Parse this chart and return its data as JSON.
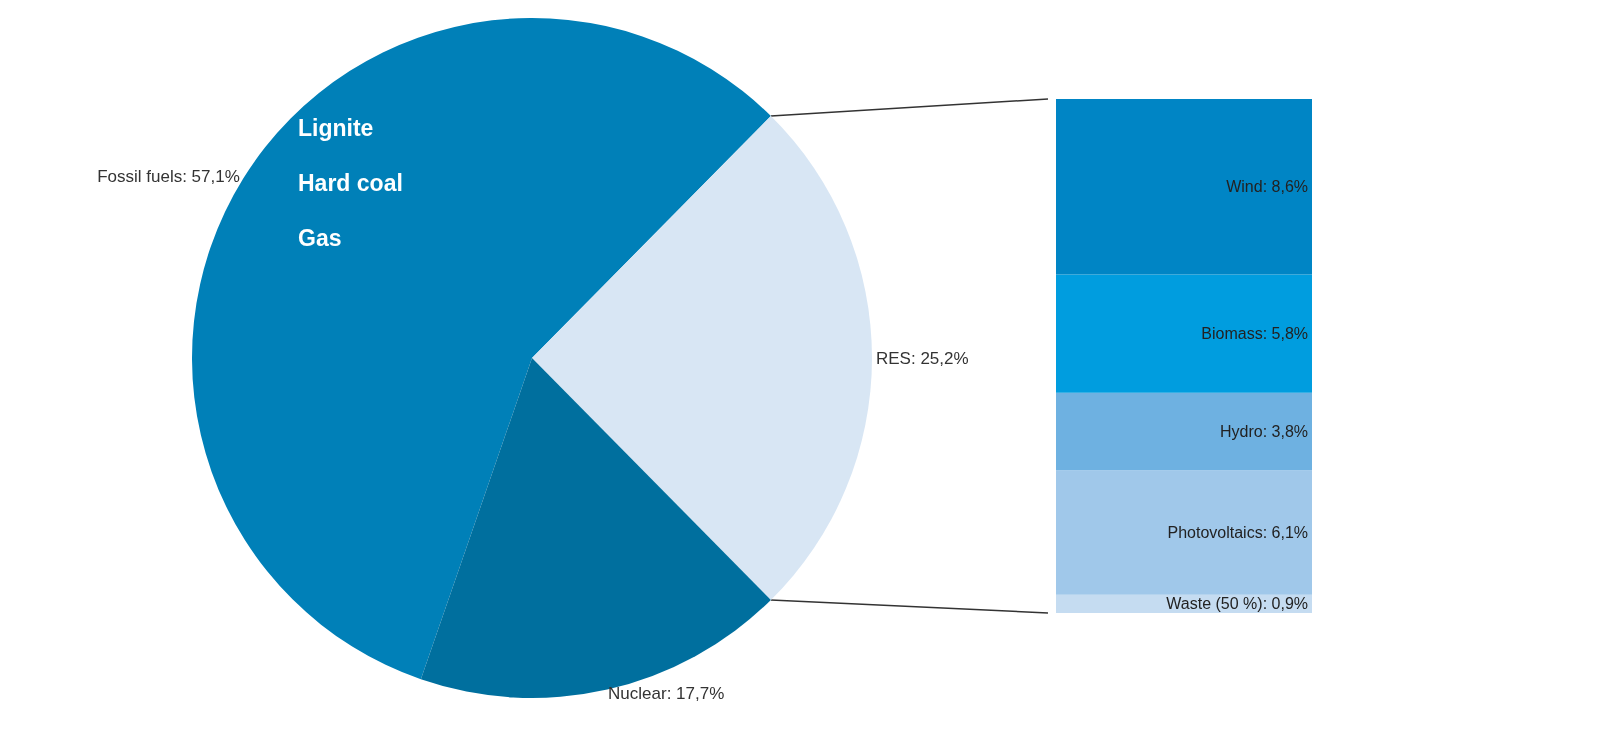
{
  "chart_data": [
    {
      "type": "pie",
      "categories": [
        "Fossil fuels",
        "RES",
        "Nuclear"
      ],
      "values": [
        57.1,
        25.2,
        17.7
      ],
      "value_labels": [
        "57,1%",
        "25,2%",
        "17,7%"
      ],
      "colors": [
        "#0080b8",
        "#d8e6f4",
        "#006f9e"
      ],
      "annotations": [
        "Lignite",
        "Hard coal",
        "Gas"
      ]
    },
    {
      "type": "bar",
      "stacked": true,
      "categories": [
        null
      ],
      "series": [
        {
          "name": "Waste (50 %):",
          "color": "#c5dcf1",
          "values": [
            0.9
          ],
          "value_labels": [
            "0,9%"
          ]
        },
        {
          "name": "Photovoltaics:",
          "color": "#a0c8ea",
          "values": [
            6.1
          ],
          "value_labels": [
            "6,1%"
          ]
        },
        {
          "name": "Hydro:",
          "color": "#6eb1e1",
          "values": [
            3.8
          ],
          "value_labels": [
            "3,8%"
          ]
        },
        {
          "name": "Biomass:",
          "color": "#009ddf",
          "values": [
            5.8
          ],
          "value_labels": [
            "5,8%"
          ]
        },
        {
          "name": "Wind:",
          "color": "#0085c5",
          "values": [
            8.6
          ],
          "value_labels": [
            "8,6%"
          ]
        }
      ]
    }
  ]
}
